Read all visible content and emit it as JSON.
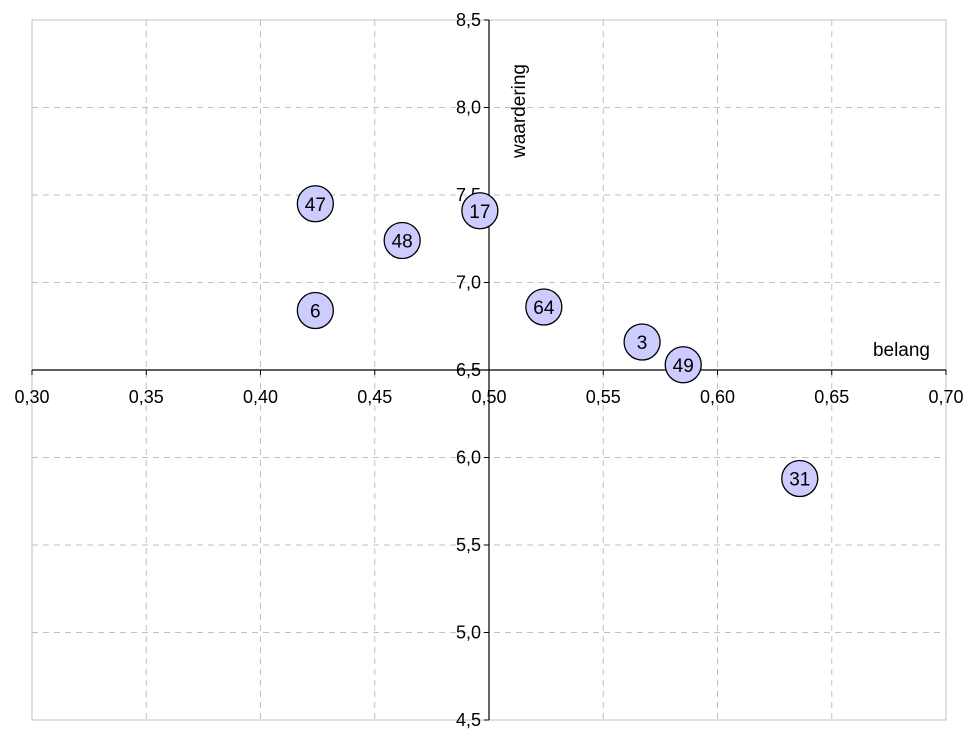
{
  "chart_data": {
    "type": "scatter",
    "title": "",
    "xlabel": "belang",
    "ylabel": "waardering",
    "xlim": [
      0.3,
      0.7
    ],
    "ylim": [
      4.5,
      8.5
    ],
    "x_ticks": [
      {
        "value": 0.3,
        "label": "0,30"
      },
      {
        "value": 0.35,
        "label": "0,35"
      },
      {
        "value": 0.4,
        "label": "0,40"
      },
      {
        "value": 0.45,
        "label": "0,45"
      },
      {
        "value": 0.5,
        "label": "0,50"
      },
      {
        "value": 0.55,
        "label": "0,55"
      },
      {
        "value": 0.6,
        "label": "0,60"
      },
      {
        "value": 0.65,
        "label": "0,65"
      },
      {
        "value": 0.7,
        "label": "0,70"
      }
    ],
    "y_ticks": [
      {
        "value": 4.5,
        "label": "4,5"
      },
      {
        "value": 5.0,
        "label": "5,0"
      },
      {
        "value": 5.5,
        "label": "5,5"
      },
      {
        "value": 6.0,
        "label": "6,0"
      },
      {
        "value": 6.5,
        "label": "6,5"
      },
      {
        "value": 7.0,
        "label": "7,0"
      },
      {
        "value": 7.5,
        "label": "7,5"
      },
      {
        "value": 8.0,
        "label": "8,0"
      },
      {
        "value": 8.5,
        "label": "8,5"
      }
    ],
    "x_axis_crosses_y": 6.5,
    "y_axis_crosses_x": 0.5,
    "grid": true,
    "points": [
      {
        "label": "47",
        "x": 0.424,
        "y": 7.45
      },
      {
        "label": "17",
        "x": 0.496,
        "y": 7.41
      },
      {
        "label": "48",
        "x": 0.462,
        "y": 7.24
      },
      {
        "label": "6",
        "x": 0.424,
        "y": 6.84
      },
      {
        "label": "64",
        "x": 0.524,
        "y": 6.86
      },
      {
        "label": "3",
        "x": 0.567,
        "y": 6.66
      },
      {
        "label": "49",
        "x": 0.585,
        "y": 6.53
      },
      {
        "label": "31",
        "x": 0.636,
        "y": 5.88
      }
    ],
    "colors": {
      "marker_fill": "#ccccff",
      "marker_stroke": "#000000",
      "grid": "#c0c0c0",
      "axis": "#000000",
      "plot_border": "#c0c0c0"
    }
  }
}
